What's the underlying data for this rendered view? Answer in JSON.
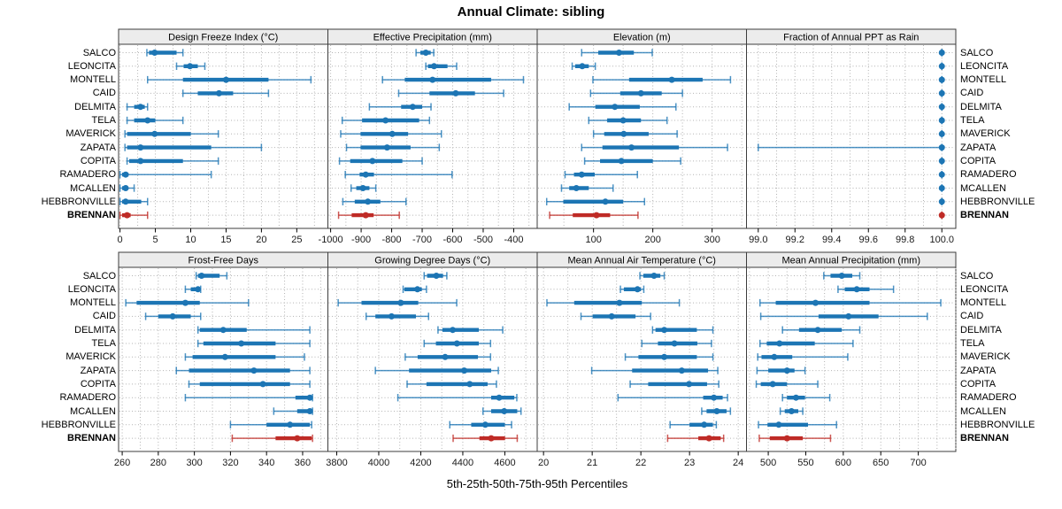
{
  "title": "Annual Climate: sibling",
  "footer_label": "5th-25th-50th-75th-95th Percentiles",
  "stations": [
    "SALCO",
    "LEONCITA",
    "MONTELL",
    "CAID",
    "DELMITA",
    "TELA",
    "MAVERICK",
    "ZAPATA",
    "COPITA",
    "RAMADERO",
    "MCALLEN",
    "HEBBRONVILLE",
    "BRENNAN"
  ],
  "highlight_station": "BRENNAN",
  "colors": {
    "series": "#1c75b4",
    "highlight": "#bf2b26",
    "strip_bg": "#ececec",
    "panel_border": "#3c3c3c",
    "grid": "#b3b3b3",
    "tick_text": "#1a1a1a"
  },
  "chart_data": {
    "type": "percentile-dotplot-trellis",
    "percentiles": [
      "5th",
      "25th",
      "50th",
      "75th",
      "95th"
    ],
    "panels": [
      {
        "title": "Design Freeze Index (°C)",
        "xlim": [
          -0.2,
          29.4
        ],
        "minor_step": 2.5,
        "tick_values": [
          0,
          5,
          10,
          15,
          20,
          25
        ],
        "tick_labels": [
          "0",
          "5",
          "10",
          "15",
          "20",
          "25"
        ],
        "values": [
          [
            3.8,
            4.1,
            4.9,
            8.0,
            8.9
          ],
          [
            8.0,
            9.0,
            9.9,
            11.0,
            12.0
          ],
          [
            3.9,
            8.9,
            15.0,
            21.0,
            27.0
          ],
          [
            8.9,
            11.0,
            14.0,
            16.0,
            21.0
          ],
          [
            1.0,
            2.0,
            2.9,
            3.5,
            3.9
          ],
          [
            1.0,
            2.0,
            3.9,
            5.0,
            8.9
          ],
          [
            0.7,
            1.0,
            4.9,
            10.0,
            13.9
          ],
          [
            0.7,
            1.0,
            2.9,
            12.9,
            20.0
          ],
          [
            1.0,
            1.3,
            2.9,
            8.9,
            13.9
          ],
          [
            0.0,
            0.3,
            0.8,
            1.2,
            12.9
          ],
          [
            0.0,
            0.3,
            0.8,
            1.1,
            2.0
          ],
          [
            0.0,
            0.3,
            0.8,
            3.0,
            3.9
          ],
          [
            0.0,
            0.3,
            1.0,
            1.5,
            3.9
          ]
        ]
      },
      {
        "title": "Effective Precipitation (mm)",
        "xlim": [
          -1009,
          -323
        ],
        "minor_step": 50,
        "tick_values": [
          -1000,
          -900,
          -800,
          -700,
          -600,
          -500,
          -400
        ],
        "tick_labels": [
          "-1000",
          "-900",
          "-800",
          "-700",
          "-600",
          "-500",
          "-400"
        ],
        "values": [
          [
            -720,
            -706,
            -688,
            -672,
            -662
          ],
          [
            -688,
            -681,
            -661,
            -617,
            -587
          ],
          [
            -830,
            -757,
            -666,
            -474,
            -368
          ],
          [
            -777,
            -676,
            -590,
            -527,
            -433
          ],
          [
            -873,
            -769,
            -731,
            -700,
            -671
          ],
          [
            -962,
            -897,
            -820,
            -710,
            -676
          ],
          [
            -967,
            -902,
            -798,
            -746,
            -637
          ],
          [
            -948,
            -902,
            -815,
            -738,
            -644
          ],
          [
            -971,
            -936,
            -863,
            -765,
            -700
          ],
          [
            -952,
            -905,
            -885,
            -858,
            -602
          ],
          [
            -933,
            -916,
            -894,
            -873,
            -852
          ],
          [
            -960,
            -921,
            -878,
            -837,
            -753
          ],
          [
            -974,
            -931,
            -885,
            -859,
            -775
          ]
        ]
      },
      {
        "title": "Elevation (m)",
        "xlim": [
          5,
          358
        ],
        "minor_step": 50,
        "tick_values": [
          100,
          200,
          300
        ],
        "tick_labels": [
          "100",
          "200",
          "300"
        ],
        "values": [
          [
            80,
            108,
            143,
            168,
            199
          ],
          [
            64,
            69,
            81,
            92,
            103
          ],
          [
            99,
            160,
            232,
            284,
            331
          ],
          [
            95,
            145,
            180,
            215,
            250
          ],
          [
            59,
            103,
            136,
            178,
            239
          ],
          [
            92,
            123,
            150,
            180,
            224
          ],
          [
            100,
            118,
            151,
            193,
            241
          ],
          [
            80,
            115,
            164,
            244,
            326
          ],
          [
            85,
            111,
            147,
            200,
            247
          ],
          [
            52,
            67,
            80,
            102,
            174
          ],
          [
            46,
            59,
            71,
            92,
            133
          ],
          [
            21,
            49,
            120,
            150,
            186
          ],
          [
            26,
            65,
            105,
            128,
            175
          ]
        ]
      },
      {
        "title": "Fraction of Annual PPT as Rain",
        "xlim": [
          98.936,
          100.076
        ],
        "minor_step": 0.1,
        "tick_values": [
          99.0,
          99.2,
          99.4,
          99.6,
          99.8,
          100.0
        ],
        "tick_labels": [
          "99.0",
          "99.2",
          "99.4",
          "99.6",
          "99.8",
          "100.0"
        ],
        "values": [
          [
            100,
            100,
            100,
            100,
            100
          ],
          [
            100,
            100,
            100,
            100,
            100
          ],
          [
            100,
            100,
            100,
            100,
            100
          ],
          [
            100,
            100,
            100,
            100,
            100
          ],
          [
            100,
            100,
            100,
            100,
            100
          ],
          [
            100,
            100,
            100,
            100,
            100
          ],
          [
            100,
            100,
            100,
            100,
            100
          ],
          [
            99.0,
            99.99,
            100,
            100,
            100
          ],
          [
            100,
            100,
            100,
            100,
            100
          ],
          [
            100,
            100,
            100,
            100,
            100
          ],
          [
            100,
            100,
            100,
            100,
            100
          ],
          [
            100,
            100,
            100,
            100,
            100
          ],
          [
            100,
            100,
            100,
            100,
            100
          ]
        ]
      },
      {
        "title": "Frost-Free Days",
        "xlim": [
          258,
          374
        ],
        "minor_step": 10,
        "tick_values": [
          260,
          280,
          300,
          320,
          340,
          360
        ],
        "tick_labels": [
          "260",
          "280",
          "300",
          "320",
          "340",
          "360"
        ],
        "values": [
          [
            301,
            302,
            304,
            314,
            318
          ],
          [
            295,
            298,
            302,
            303,
            303.5
          ],
          [
            262,
            268,
            295,
            303,
            330
          ],
          [
            273,
            280,
            288,
            298,
            303.5
          ],
          [
            302,
            303,
            316,
            329,
            364
          ],
          [
            302,
            305,
            326,
            345,
            364
          ],
          [
            295,
            299,
            317,
            345,
            361
          ],
          [
            290,
            297,
            333,
            353,
            364
          ],
          [
            297,
            303,
            338,
            353,
            364
          ],
          [
            295,
            356,
            364,
            365,
            365.5
          ],
          [
            344,
            357,
            364,
            365,
            365.5
          ],
          [
            320,
            340,
            353,
            364,
            365
          ],
          [
            321,
            345,
            357,
            365,
            365.5
          ]
        ]
      },
      {
        "title": "Growing Degree Days (°C)",
        "xlim": [
          3758,
          4754
        ],
        "minor_step": 100,
        "tick_values": [
          3800,
          4000,
          4200,
          4400,
          4600
        ],
        "tick_labels": [
          "3800",
          "4000",
          "4200",
          "4400",
          "4600"
        ],
        "values": [
          [
            4216,
            4230,
            4274,
            4306,
            4324
          ],
          [
            4116,
            4122,
            4184,
            4205,
            4227
          ],
          [
            3807,
            3918,
            4105,
            4188,
            4371
          ],
          [
            3940,
            3984,
            4061,
            4177,
            4237
          ],
          [
            4282,
            4303,
            4352,
            4476,
            4590
          ],
          [
            4216,
            4272,
            4372,
            4476,
            4532
          ],
          [
            4126,
            4185,
            4316,
            4472,
            4532
          ],
          [
            3984,
            4144,
            4407,
            4535,
            4569
          ],
          [
            4135,
            4227,
            4433,
            4518,
            4560
          ],
          [
            4091,
            4535,
            4573,
            4645,
            4657
          ],
          [
            4496,
            4535,
            4597,
            4659,
            4677
          ],
          [
            4338,
            4440,
            4507,
            4600,
            4632
          ],
          [
            4354,
            4479,
            4535,
            4601,
            4659
          ]
        ]
      },
      {
        "title": "Mean Annual Air Temperature (°C)",
        "xlim": [
          19.87,
          24.17
        ],
        "minor_step": 0.5,
        "tick_values": [
          20,
          21,
          22,
          23,
          24
        ],
        "tick_labels": [
          "20",
          "21",
          "22",
          "23",
          "24"
        ],
        "values": [
          [
            21.98,
            22.05,
            22.27,
            22.4,
            22.48
          ],
          [
            21.58,
            21.65,
            21.93,
            22.0,
            22.06
          ],
          [
            20.07,
            20.63,
            21.56,
            22.02,
            22.79
          ],
          [
            20.77,
            21.01,
            21.4,
            21.89,
            22.2
          ],
          [
            22.24,
            22.3,
            22.48,
            23.15,
            23.48
          ],
          [
            22.02,
            22.35,
            22.69,
            23.16,
            23.45
          ],
          [
            21.68,
            21.95,
            22.48,
            23.15,
            23.48
          ],
          [
            20.99,
            21.82,
            22.84,
            23.38,
            23.58
          ],
          [
            21.78,
            22.15,
            22.99,
            23.36,
            23.6
          ],
          [
            21.53,
            23.28,
            23.5,
            23.68,
            23.78
          ],
          [
            23.25,
            23.35,
            23.56,
            23.76,
            23.84
          ],
          [
            22.6,
            23.0,
            23.3,
            23.48,
            23.55
          ],
          [
            22.55,
            23.18,
            23.4,
            23.64,
            23.7
          ]
        ]
      },
      {
        "title": "Mean Annual Precipitation (mm)",
        "xlim": [
          471,
          750
        ],
        "minor_step": 25,
        "tick_values": [
          500,
          550,
          600,
          650,
          700
        ],
        "tick_labels": [
          "500",
          "550",
          "600",
          "650",
          "700"
        ],
        "values": [
          [
            574,
            583,
            598,
            612,
            622
          ],
          [
            593,
            602,
            618,
            635,
            667
          ],
          [
            489,
            510,
            563,
            635,
            730
          ],
          [
            490,
            567,
            607,
            647,
            712
          ],
          [
            519,
            541,
            566,
            598,
            622
          ],
          [
            489,
            498,
            515,
            562,
            613
          ],
          [
            486,
            491,
            508,
            532,
            606
          ],
          [
            485,
            500,
            525,
            535,
            549
          ],
          [
            484,
            490,
            506,
            525,
            566
          ],
          [
            519,
            525,
            537,
            549,
            582
          ],
          [
            516,
            522,
            531,
            540,
            546
          ],
          [
            487,
            499,
            514,
            553,
            591
          ],
          [
            488,
            502,
            525,
            546,
            583
          ]
        ]
      }
    ]
  }
}
